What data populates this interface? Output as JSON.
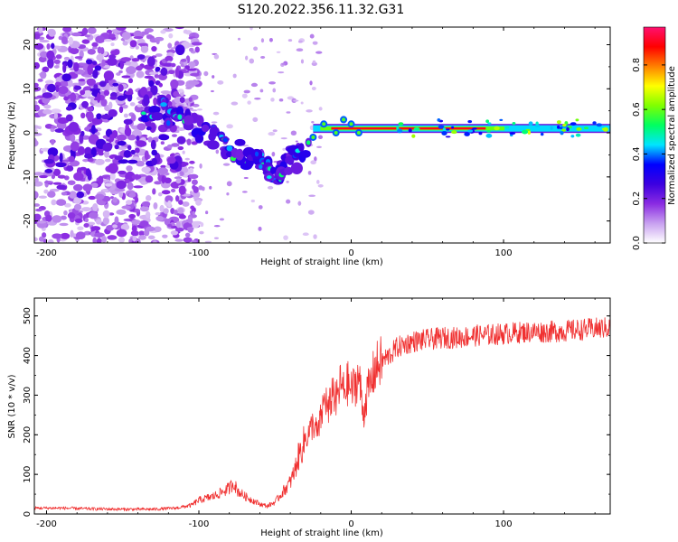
{
  "figure": {
    "title": "S120.2022.356.11.32.G31"
  },
  "chart_data": [
    {
      "type": "heatmap",
      "xlabel": "Height of straight line (km)",
      "ylabel": "Frequency (Hz)",
      "xlim": [
        -208,
        170
      ],
      "ylim": [
        -25,
        24
      ],
      "xticks": [
        -200,
        -100,
        0,
        100
      ],
      "yticks": [
        -20,
        -10,
        0,
        10,
        20
      ],
      "colorbar": {
        "label": "Normalized spectral amplitude",
        "range": [
          0,
          0.97
        ],
        "ticks": [
          0.0,
          0.2,
          0.4,
          0.6,
          0.8
        ],
        "colormap": [
          "#ffffff",
          "#c8a0f0",
          "#8a2be2",
          "#3c00e0",
          "#0000ff",
          "#00e5ff",
          "#00ff60",
          "#7fff00",
          "#ffff00",
          "#ff8000",
          "#ff0000",
          "#ff1070"
        ]
      },
      "features": {
        "noise_region_x": [
          -208,
          -120
        ],
        "diagonal_trace": {
          "x": [
            -135,
            -110,
            -85,
            -65,
            -50,
            -40,
            -30
          ],
          "y": [
            6,
            3,
            -2,
            -6,
            -9,
            -7,
            -3
          ]
        },
        "strong_line": {
          "x": [
            -25,
            170
          ],
          "y": 1.0
        }
      },
      "grid": false
    },
    {
      "type": "line",
      "xlabel": "Height of straight line (km)",
      "ylabel": "SNR (10 * v/v)",
      "xlim": [
        -208,
        170
      ],
      "ylim": [
        0,
        545
      ],
      "xticks": [
        -200,
        -100,
        0,
        100
      ],
      "yticks": [
        0,
        100,
        200,
        300,
        400,
        500
      ],
      "color": "#f03030",
      "series": [
        {
          "x": [
            -208,
            -190,
            -170,
            -150,
            -130,
            -115,
            -105,
            -100,
            -95,
            -90,
            -85,
            -80,
            -77,
            -75,
            -70,
            -65,
            -60,
            -55,
            -50,
            -45,
            -40,
            -37,
            -35,
            -32,
            -30,
            -27,
            -25,
            -22,
            -20,
            -17,
            -15,
            -12,
            -10,
            -7,
            -5,
            -2,
            0,
            3,
            5,
            8,
            10,
            13,
            15,
            18,
            20,
            25,
            30,
            40,
            50,
            60,
            70,
            80,
            90,
            100,
            110,
            120,
            130,
            140,
            150,
            160,
            170
          ],
          "y": [
            15,
            15,
            13,
            12,
            12,
            15,
            22,
            35,
            40,
            45,
            55,
            65,
            80,
            60,
            45,
            35,
            25,
            20,
            30,
            55,
            80,
            110,
            140,
            170,
            190,
            210,
            230,
            200,
            240,
            300,
            250,
            320,
            280,
            330,
            310,
            330,
            310,
            330,
            350,
            250,
            300,
            330,
            360,
            380,
            385,
            400,
            420,
            435,
            440,
            445,
            445,
            450,
            452,
            455,
            458,
            460,
            460,
            462,
            465,
            468,
            470
          ]
        }
      ],
      "grid": false
    }
  ]
}
